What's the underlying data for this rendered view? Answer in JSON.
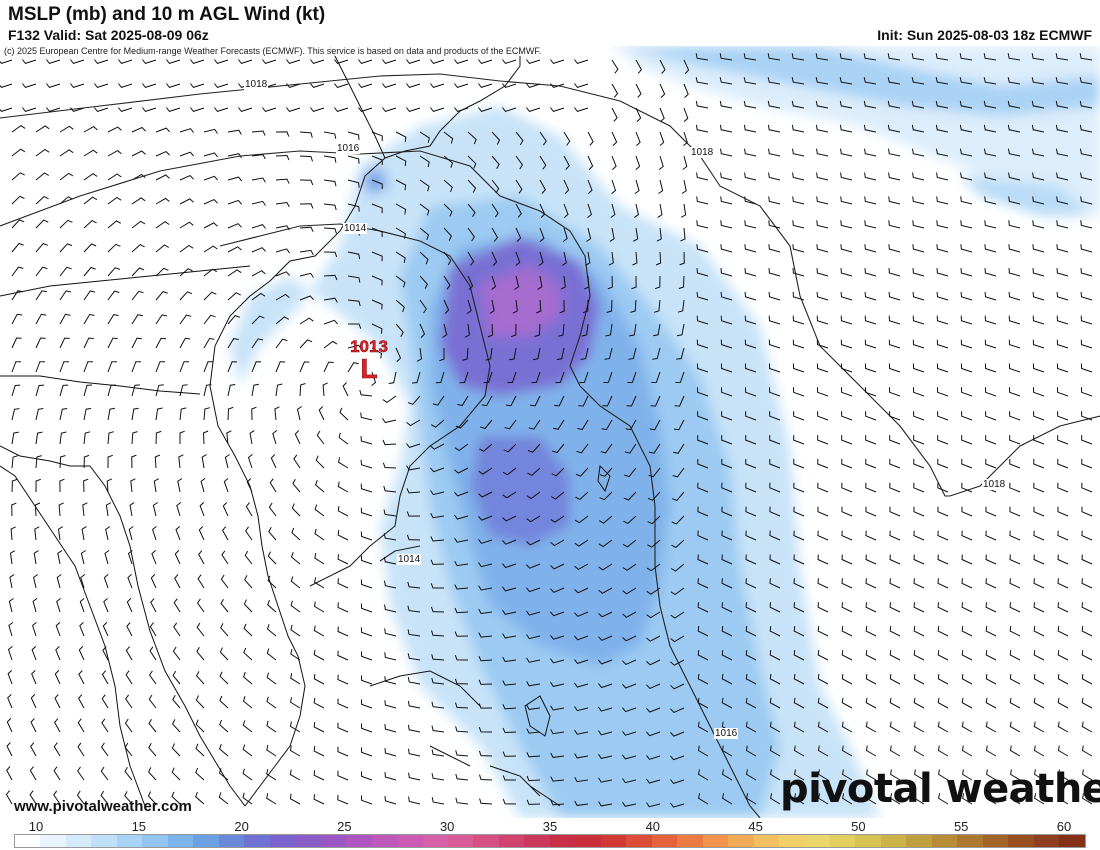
{
  "header": {
    "title": "MSLP (mb) and 10 m AGL Wind (kt)",
    "valid": "F132 Valid: Sat 2025-08-09 06z",
    "init": "Init: Sun 2025-08-03 18z ECMWF"
  },
  "map": {
    "copyright": "(c) 2025 European Centre for Medium-range Weather Forecasts (ECMWF). This service is based on data and products of the ECMWF.",
    "low": {
      "value": "1013",
      "letter": "L"
    },
    "isobar_labels": [
      "1018",
      "1016",
      "1018",
      "1014",
      "1014",
      "1018",
      "1016"
    ],
    "website": "www.pivotalweather.com",
    "logo": "pivotal weather"
  },
  "colorbar": {
    "ticks": [
      "10",
      "15",
      "20",
      "25",
      "30",
      "35",
      "40",
      "45",
      "50",
      "55",
      "60"
    ],
    "colors": [
      "#ffffff",
      "#e8f3fd",
      "#d4eafb",
      "#bfe0f8",
      "#a8d3f5",
      "#92c5f0",
      "#7bb4ea",
      "#6a9fe2",
      "#6a88da",
      "#6f72d2",
      "#7a63cc",
      "#8a5cc8",
      "#9b57c4",
      "#ad56bf",
      "#be58ba",
      "#cc5ab2",
      "#d660a8",
      "#d85a97",
      "#d64f83",
      "#d1436f",
      "#cc385b",
      "#c83048",
      "#c92e3a",
      "#d23a36",
      "#dc4d38",
      "#e5633c",
      "#ec7b43",
      "#f1934d",
      "#f3ab58",
      "#f3c061",
      "#f1d068",
      "#ebd66a",
      "#e1cf5f",
      "#d6c352",
      "#cbb347",
      "#c0a03e",
      "#b68c36",
      "#ac782f",
      "#a26429",
      "#985023",
      "#8e3f1f",
      "#853019"
    ]
  }
}
